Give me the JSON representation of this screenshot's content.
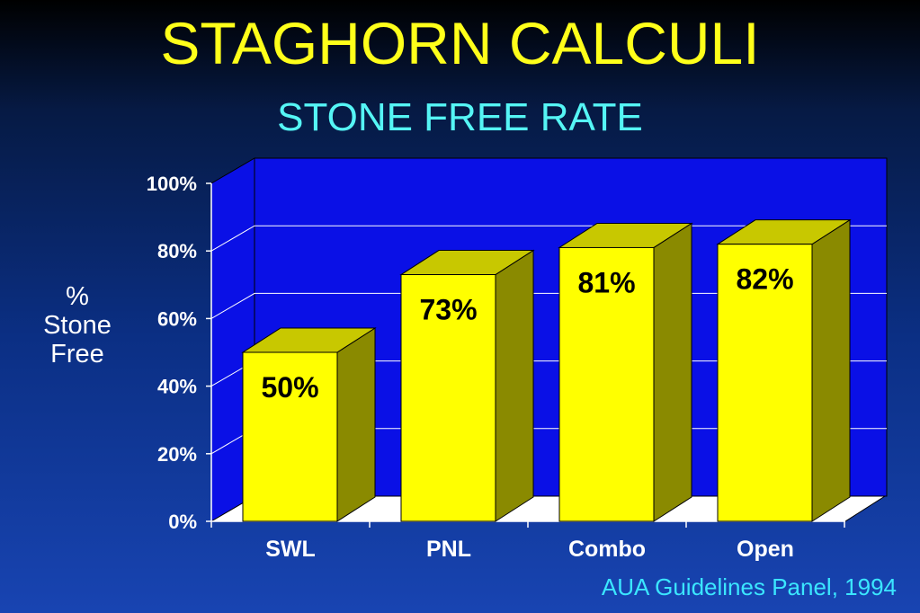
{
  "title": "STAGHORN CALCULI",
  "subtitle": "STONE FREE RATE",
  "source": "AUA Guidelines Panel, 1994",
  "colors": {
    "title": "#ffff1a",
    "subtitle": "#55f5f5",
    "plot_wall": "#0a10e6",
    "bar_front": "#ffff00",
    "bar_side": "#8a8a00",
    "bar_top": "#c8c800",
    "source": "#3be6ff"
  },
  "chart_data": {
    "type": "bar",
    "categories": [
      "SWL",
      "PNL",
      "Combo",
      "Open"
    ],
    "values": [
      50,
      73,
      81,
      82
    ],
    "data_labels": [
      "50%",
      "73%",
      "81%",
      "82%"
    ],
    "ylabel_lines": [
      "%",
      "Stone",
      "Free"
    ],
    "yticks": [
      "0%",
      "20%",
      "40%",
      "60%",
      "80%",
      "100%"
    ],
    "ylim": [
      0,
      100
    ],
    "grid": true,
    "three_d": true
  }
}
